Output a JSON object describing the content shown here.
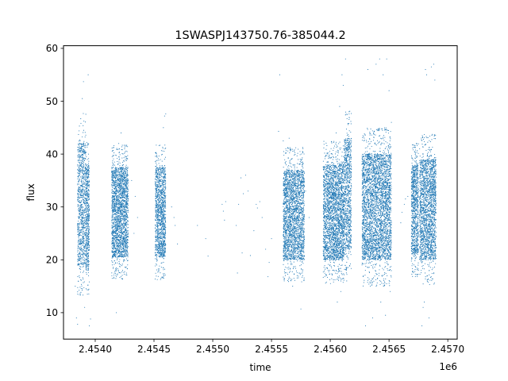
{
  "chart_data": {
    "type": "scatter",
    "title": "1SWASPJ143750.76-385044.2",
    "xlabel": "time",
    "ylabel": "flux",
    "x_offset_label": "1e6",
    "xlim": [
      2.45373,
      2.45708
    ],
    "ylim": [
      5,
      60.5
    ],
    "x_ticks": [
      2.454,
      2.4545,
      2.455,
      2.4555,
      2.456,
      2.4565,
      2.457
    ],
    "x_tick_labels": [
      "2.4540",
      "2.4545",
      "2.4550",
      "2.4555",
      "2.4560",
      "2.4565",
      "2.4570"
    ],
    "y_ticks": [
      10,
      20,
      30,
      40,
      50,
      60
    ],
    "y_tick_labels": [
      "10",
      "20",
      "30",
      "40",
      "50",
      "60"
    ],
    "grid": false,
    "marker_color": "#1f77b4",
    "segments": [
      {
        "x0": 2.45385,
        "x1": 2.45392,
        "lo": 19,
        "hi": 42,
        "n": 900
      },
      {
        "x0": 2.45392,
        "x1": 2.45395,
        "lo": 18,
        "hi": 38,
        "n": 500
      },
      {
        "x0": 2.45414,
        "x1": 2.45428,
        "lo": 20.5,
        "hi": 37.5,
        "n": 2200
      },
      {
        "x0": 2.45451,
        "x1": 2.4546,
        "lo": 20.5,
        "hi": 37.5,
        "n": 1300
      },
      {
        "x0": 2.4556,
        "x1": 2.45578,
        "lo": 20,
        "hi": 37,
        "n": 2400
      },
      {
        "x0": 2.45594,
        "x1": 2.45612,
        "lo": 20,
        "hi": 38,
        "n": 2600
      },
      {
        "x0": 2.45612,
        "x1": 2.45618,
        "lo": 22,
        "hi": 43,
        "n": 800
      },
      {
        "x0": 2.45627,
        "x1": 2.45652,
        "lo": 20,
        "hi": 40,
        "n": 3600
      },
      {
        "x0": 2.45669,
        "x1": 2.45675,
        "lo": 21,
        "hi": 38,
        "n": 900
      },
      {
        "x0": 2.45676,
        "x1": 2.4569,
        "lo": 20,
        "hi": 39,
        "n": 2000
      }
    ],
    "sparse_points": [
      [
        2.45384,
        9
      ],
      [
        2.45385,
        7.8
      ],
      [
        2.45391,
        11
      ],
      [
        2.45395,
        7.5
      ],
      [
        2.45396,
        8.8
      ],
      [
        2.45389,
        50.5
      ],
      [
        2.4539,
        53.7
      ],
      [
        2.45394,
        55
      ],
      [
        2.45383,
        15
      ],
      [
        2.45418,
        10
      ],
      [
        2.4542,
        42
      ],
      [
        2.45422,
        44
      ],
      [
        2.45425,
        41
      ],
      [
        2.45434,
        32
      ],
      [
        2.45436,
        28
      ],
      [
        2.45431,
        35
      ],
      [
        2.45433,
        25
      ],
      [
        2.45459,
        47.2
      ],
      [
        2.4546,
        47.6
      ],
      [
        2.45456,
        16.5
      ],
      [
        2.45458,
        45
      ],
      [
        2.45465,
        30
      ],
      [
        2.45467,
        28
      ],
      [
        2.4547,
        23
      ],
      [
        2.45468,
        26.5
      ],
      [
        2.45487,
        26.5
      ],
      [
        2.45494,
        24
      ],
      [
        2.45496,
        20.7
      ],
      [
        2.45508,
        30.5
      ],
      [
        2.45509,
        29.2
      ],
      [
        2.45511,
        31
      ],
      [
        2.4551,
        27.5
      ],
      [
        2.45525,
        21.3
      ],
      [
        2.45526,
        32.5
      ],
      [
        2.45528,
        36
      ],
      [
        2.4553,
        33
      ],
      [
        2.45524,
        35.5
      ],
      [
        2.45522,
        30.5
      ],
      [
        2.45521,
        17.5
      ],
      [
        2.4552,
        26.5
      ],
      [
        2.45532,
        20.8
      ],
      [
        2.45535,
        25.5
      ],
      [
        2.45537,
        30.5
      ],
      [
        2.45538,
        29.8
      ],
      [
        2.4554,
        31
      ],
      [
        2.45545,
        22
      ],
      [
        2.45548,
        19.5
      ],
      [
        2.45547,
        16.8
      ],
      [
        2.45542,
        28
      ],
      [
        2.4555,
        24
      ],
      [
        2.45556,
        44.3
      ],
      [
        2.45557,
        55
      ],
      [
        2.4556,
        42.5
      ],
      [
        2.45565,
        43
      ],
      [
        2.45568,
        15
      ],
      [
        2.45575,
        10.7
      ],
      [
        2.45579,
        33
      ],
      [
        2.45582,
        28
      ],
      [
        2.45605,
        44
      ],
      [
        2.45608,
        49
      ],
      [
        2.4561,
        55
      ],
      [
        2.45613,
        58
      ],
      [
        2.45611,
        53
      ],
      [
        2.45609,
        14
      ],
      [
        2.45606,
        12
      ],
      [
        2.45616,
        48
      ],
      [
        2.45614,
        16
      ],
      [
        2.45632,
        56
      ],
      [
        2.4563,
        7.5
      ],
      [
        2.45636,
        9
      ],
      [
        2.45643,
        12
      ],
      [
        2.45647,
        9.5
      ],
      [
        2.45648,
        58
      ],
      [
        2.45639,
        57
      ],
      [
        2.45642,
        58
      ],
      [
        2.45645,
        55
      ],
      [
        2.4565,
        52
      ],
      [
        2.45651,
        14
      ],
      [
        2.45652,
        46
      ],
      [
        2.45663,
        30.5
      ],
      [
        2.45664,
        31.5
      ],
      [
        2.45666,
        32
      ],
      [
        2.4566,
        27
      ],
      [
        2.45661,
        29
      ],
      [
        2.45678,
        7.5
      ],
      [
        2.45679,
        11
      ],
      [
        2.45681,
        56
      ],
      [
        2.45682,
        55
      ],
      [
        2.4568,
        12
      ],
      [
        2.45686,
        56.5
      ],
      [
        2.45688,
        57
      ],
      [
        2.45689,
        54
      ],
      [
        2.45684,
        9
      ]
    ]
  }
}
